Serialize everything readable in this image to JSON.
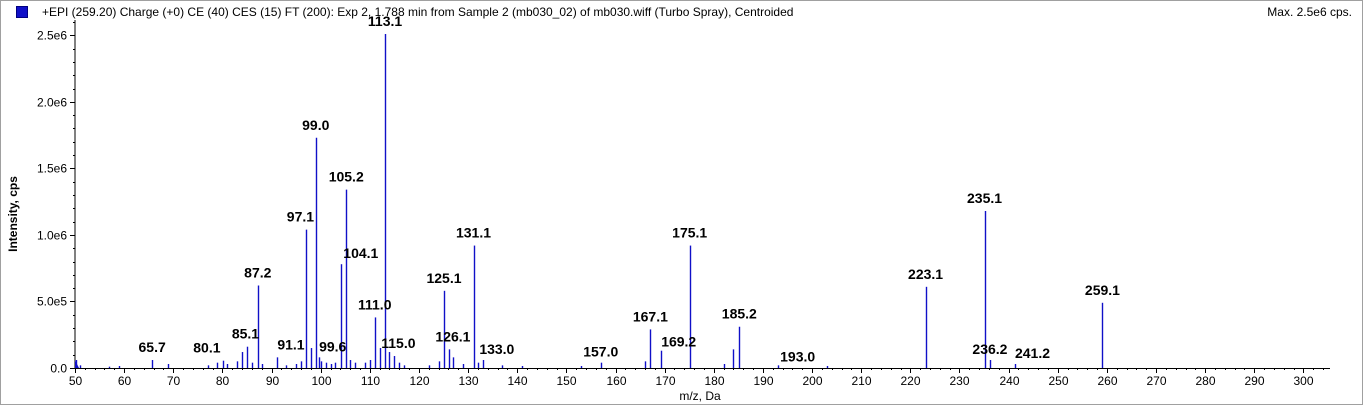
{
  "header": {
    "title": "+EPI (259.20) Charge (+0) CE (40) CES (15) FT (200): Exp 2, 1.788 min from Sample 2 (mb030_02) of mb030.wiff (Turbo Spray), Centroided",
    "max_label": "Max. 2.5e6 cps."
  },
  "colors": {
    "series": "#1010c8",
    "axis": "#000000",
    "swatch": "#1010c8"
  },
  "chart_data": {
    "type": "bar",
    "xlabel": "m/z, Da",
    "ylabel": "Intensity, cps",
    "xlim": [
      50,
      305
    ],
    "ylim": [
      0,
      2600000
    ],
    "x_ticks": [
      50,
      60,
      70,
      80,
      90,
      100,
      110,
      120,
      130,
      140,
      150,
      160,
      170,
      180,
      190,
      200,
      210,
      220,
      230,
      240,
      250,
      260,
      270,
      280,
      290,
      300
    ],
    "x_tick_labels": [
      "50",
      "60",
      "70",
      "80",
      "90",
      "100",
      "110",
      "120",
      "130",
      "140",
      "150",
      "160",
      "170",
      "180",
      "190",
      "200",
      "210",
      "220",
      "230",
      "240",
      "250",
      "260",
      "270",
      "280",
      "290",
      "300"
    ],
    "y_ticks": [
      0,
      500000,
      1000000,
      1500000,
      2000000,
      2500000
    ],
    "y_tick_labels": [
      "0.0",
      "5.0e5",
      "1.0e6",
      "1.5e6",
      "2.0e6",
      "2.5e6"
    ],
    "peaks": [
      {
        "x": 50.2,
        "y": 60000
      },
      {
        "x": 51.0,
        "y": 20000
      },
      {
        "x": 57.0,
        "y": 10000
      },
      {
        "x": 59.0,
        "y": 15000
      },
      {
        "x": 65.7,
        "y": 60000
      },
      {
        "x": 69.0,
        "y": 30000
      },
      {
        "x": 77.0,
        "y": 20000
      },
      {
        "x": 79.0,
        "y": 40000
      },
      {
        "x": 80.1,
        "y": 55000
      },
      {
        "x": 81.0,
        "y": 30000
      },
      {
        "x": 83.0,
        "y": 50000
      },
      {
        "x": 84.0,
        "y": 120000
      },
      {
        "x": 85.1,
        "y": 160000
      },
      {
        "x": 86.0,
        "y": 40000
      },
      {
        "x": 87.2,
        "y": 620000
      },
      {
        "x": 88.0,
        "y": 30000
      },
      {
        "x": 91.1,
        "y": 80000
      },
      {
        "x": 93.0,
        "y": 20000
      },
      {
        "x": 95.0,
        "y": 30000
      },
      {
        "x": 96.0,
        "y": 50000
      },
      {
        "x": 97.1,
        "y": 1040000
      },
      {
        "x": 98.0,
        "y": 150000
      },
      {
        "x": 99.0,
        "y": 1730000
      },
      {
        "x": 99.6,
        "y": 80000
      },
      {
        "x": 100.0,
        "y": 50000
      },
      {
        "x": 101.0,
        "y": 40000
      },
      {
        "x": 102.0,
        "y": 30000
      },
      {
        "x": 103.0,
        "y": 40000
      },
      {
        "x": 104.1,
        "y": 780000
      },
      {
        "x": 105.2,
        "y": 1340000
      },
      {
        "x": 106.0,
        "y": 60000
      },
      {
        "x": 107.0,
        "y": 40000
      },
      {
        "x": 109.0,
        "y": 40000
      },
      {
        "x": 110.0,
        "y": 60000
      },
      {
        "x": 111.0,
        "y": 380000
      },
      {
        "x": 112.0,
        "y": 150000
      },
      {
        "x": 113.1,
        "y": 2510000
      },
      {
        "x": 114.0,
        "y": 120000
      },
      {
        "x": 115.0,
        "y": 90000
      },
      {
        "x": 116.0,
        "y": 40000
      },
      {
        "x": 117.0,
        "y": 20000
      },
      {
        "x": 122.0,
        "y": 20000
      },
      {
        "x": 124.0,
        "y": 50000
      },
      {
        "x": 125.1,
        "y": 580000
      },
      {
        "x": 126.1,
        "y": 140000
      },
      {
        "x": 127.0,
        "y": 80000
      },
      {
        "x": 129.0,
        "y": 30000
      },
      {
        "x": 131.1,
        "y": 920000
      },
      {
        "x": 132.0,
        "y": 40000
      },
      {
        "x": 133.0,
        "y": 60000
      },
      {
        "x": 137.0,
        "y": 20000
      },
      {
        "x": 141.0,
        "y": 15000
      },
      {
        "x": 153.0,
        "y": 15000
      },
      {
        "x": 157.0,
        "y": 40000
      },
      {
        "x": 166.0,
        "y": 50000
      },
      {
        "x": 167.1,
        "y": 290000
      },
      {
        "x": 169.2,
        "y": 130000
      },
      {
        "x": 175.1,
        "y": 920000
      },
      {
        "x": 182.0,
        "y": 30000
      },
      {
        "x": 184.0,
        "y": 140000
      },
      {
        "x": 185.2,
        "y": 310000
      },
      {
        "x": 193.0,
        "y": 20000
      },
      {
        "x": 203.0,
        "y": 15000
      },
      {
        "x": 223.1,
        "y": 610000
      },
      {
        "x": 235.1,
        "y": 1180000
      },
      {
        "x": 236.2,
        "y": 60000
      },
      {
        "x": 241.2,
        "y": 30000
      },
      {
        "x": 259.1,
        "y": 490000
      }
    ],
    "peak_labels": [
      {
        "text": "65.7",
        "x": 65.7,
        "y": 60000
      },
      {
        "text": "80.1",
        "x": 80.1,
        "y": 55000
      },
      {
        "text": "85.1",
        "x": 85.1,
        "y": 160000
      },
      {
        "text": "87.2",
        "x": 87.2,
        "y": 620000
      },
      {
        "text": "91.1",
        "x": 91.1,
        "y": 80000
      },
      {
        "text": "97.1",
        "x": 97.1,
        "y": 1040000
      },
      {
        "text": "99.0",
        "x": 99.0,
        "y": 1730000
      },
      {
        "text": "99.6",
        "x": 99.6,
        "y": 80000
      },
      {
        "text": "104.1",
        "x": 104.1,
        "y": 780000
      },
      {
        "text": "105.2",
        "x": 105.2,
        "y": 1340000
      },
      {
        "text": "111.0",
        "x": 111.0,
        "y": 380000
      },
      {
        "text": "113.1",
        "x": 113.1,
        "y": 2510000
      },
      {
        "text": "115.0",
        "x": 115.0,
        "y": 90000
      },
      {
        "text": "125.1",
        "x": 125.1,
        "y": 580000
      },
      {
        "text": "126.1",
        "x": 126.1,
        "y": 140000
      },
      {
        "text": "131.1",
        "x": 131.1,
        "y": 920000
      },
      {
        "text": "133.0",
        "x": 133.0,
        "y": 60000
      },
      {
        "text": "157.0",
        "x": 157.0,
        "y": 40000
      },
      {
        "text": "167.1",
        "x": 167.1,
        "y": 290000
      },
      {
        "text": "169.2",
        "x": 169.2,
        "y": 130000
      },
      {
        "text": "175.1",
        "x": 175.1,
        "y": 920000
      },
      {
        "text": "185.2",
        "x": 185.2,
        "y": 310000
      },
      {
        "text": "193.0",
        "x": 193.0,
        "y": 20000
      },
      {
        "text": "223.1",
        "x": 223.1,
        "y": 610000
      },
      {
        "text": "235.1",
        "x": 235.1,
        "y": 1180000
      },
      {
        "text": "236.2",
        "x": 236.2,
        "y": 60000
      },
      {
        "text": "241.2",
        "x": 241.2,
        "y": 30000
      },
      {
        "text": "259.1",
        "x": 259.1,
        "y": 490000
      }
    ]
  }
}
